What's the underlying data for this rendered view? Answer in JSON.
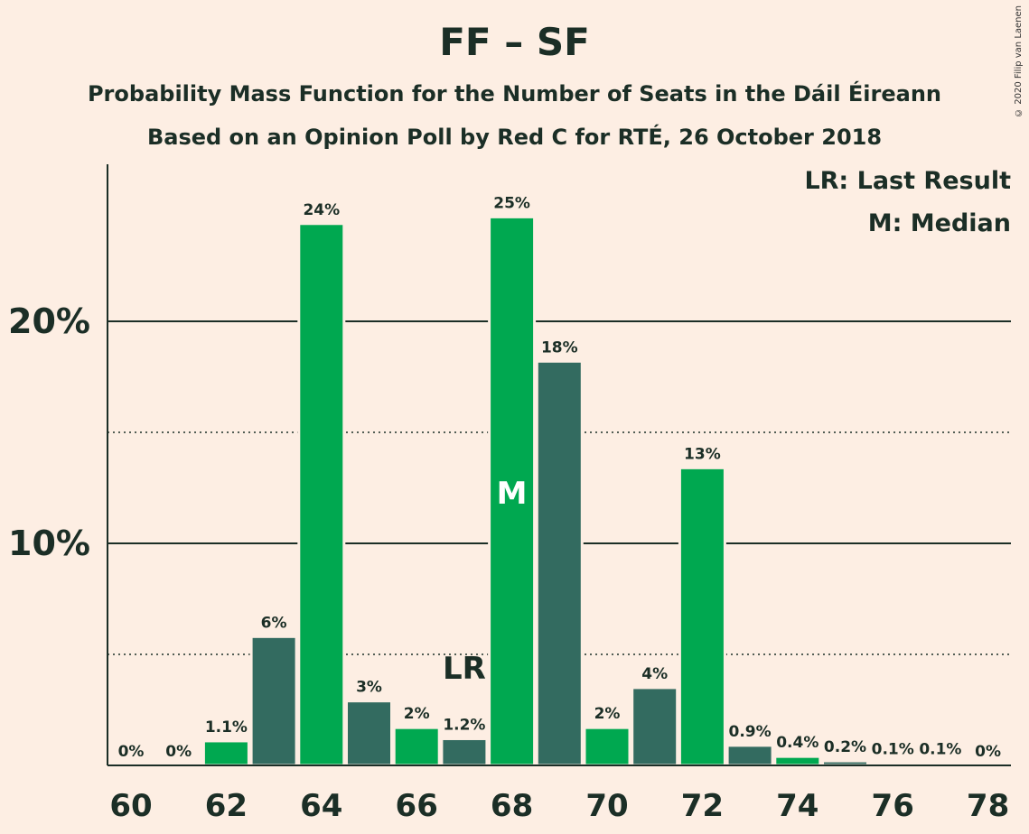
{
  "title": "FF – SF",
  "subtitle_line1": "Probability Mass Function for the Number of Seats in the Dáil Éireann",
  "subtitle_line2": "Based on an Opinion Poll by Red C for RTÉ, 26 October 2018",
  "copyright": "© 2020 Filip van Laenen",
  "legend": {
    "last_result": "LR: Last Result",
    "median": "M: Median"
  },
  "colors": {
    "background": "#fdeee3",
    "bar_light": "#00a850",
    "bar_dark": "#336b60",
    "text": "#1b2e26"
  },
  "chart_data": {
    "type": "bar",
    "x": [
      60,
      61,
      62,
      63,
      64,
      65,
      66,
      67,
      68,
      69,
      70,
      71,
      72,
      73,
      74,
      75,
      76,
      77,
      78
    ],
    "values": [
      0,
      0,
      1.1,
      5.8,
      24.4,
      2.9,
      1.7,
      1.2,
      24.7,
      18.2,
      1.7,
      3.5,
      13.4,
      0.9,
      0.4,
      0.2,
      0.1,
      0.1,
      0
    ],
    "data_labels": [
      "0%",
      "0%",
      "1.1%",
      "6%",
      "24%",
      "3%",
      "2%",
      "1.2%",
      "25%",
      "18%",
      "2%",
      "4%",
      "13%",
      "0.9%",
      "0.4%",
      "0.2%",
      "0.1%",
      "0.1%",
      "0%"
    ],
    "x_tick_labels": [
      "60",
      "62",
      "64",
      "66",
      "68",
      "70",
      "72",
      "74",
      "76",
      "78"
    ],
    "y_tick_labels": [
      "10%",
      "20%"
    ],
    "y_ticks": [
      10,
      20
    ],
    "y_minor_ticks": [
      5,
      15
    ],
    "ylim": [
      0,
      27
    ],
    "unit": "%",
    "grid": true,
    "last_result_seat": 67,
    "last_result_label": "LR",
    "median_seat": 68,
    "median_label": "M",
    "legend_position": "top-right"
  }
}
